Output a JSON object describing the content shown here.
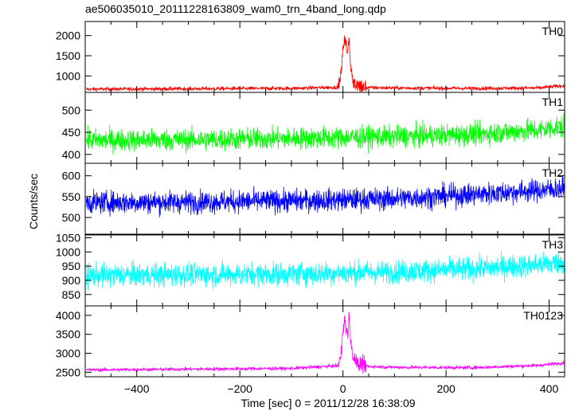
{
  "plot_title": "ae506035010_20111228163809_wam0_trn_4band_long.qdp",
  "xlabel": "Time [sec] 0 = 2011/12/28 16:38:09",
  "ylabel": "Counts/sec",
  "chart_data": {
    "type": "line",
    "title": "ae506035010_20111228163809_wam0_trn_4band_long.qdp",
    "xlabel": "Time [sec] 0 = 2011/12/28 16:38:09",
    "ylabel": "Counts/sec",
    "xlim": [
      -500,
      430
    ],
    "x_ticks": [
      -400,
      -200,
      0,
      200,
      400
    ],
    "x_tick_labels": [
      "−400",
      "−200",
      "0",
      "200",
      "400"
    ],
    "grid": false,
    "panels": [
      {
        "name": "TH0",
        "color": "#ff0000",
        "ylim": [
          590,
          2350
        ],
        "y_ticks": [
          1000,
          1500,
          2000
        ],
        "y_tick_labels": [
          "1000",
          "1500",
          "2000"
        ],
        "baseline": [
          [
            -500,
            670
          ],
          [
            -300,
            680
          ],
          [
            -100,
            690
          ],
          [
            0,
            720
          ],
          [
            100,
            700
          ],
          [
            250,
            690
          ],
          [
            380,
            700
          ],
          [
            430,
            760
          ]
        ],
        "noise": 45,
        "burst": [
          [
            -10,
            720
          ],
          [
            -5,
            950
          ],
          [
            0,
            1600
          ],
          [
            3,
            2000
          ],
          [
            6,
            1750
          ],
          [
            9,
            1500
          ],
          [
            12,
            1950
          ],
          [
            15,
            1250
          ],
          [
            19,
            900
          ],
          [
            24,
            780
          ],
          [
            32,
            730
          ],
          [
            45,
            710
          ]
        ],
        "burst_noise": 200
      },
      {
        "name": "TH1",
        "color": "#00ff00",
        "ylim": [
          380,
          540
        ],
        "y_ticks": [
          400,
          450,
          500
        ],
        "y_tick_labels": [
          "400",
          "450",
          "500"
        ],
        "baseline": [
          [
            -500,
            432
          ],
          [
            -300,
            433
          ],
          [
            -100,
            436
          ],
          [
            100,
            440
          ],
          [
            250,
            445
          ],
          [
            380,
            455
          ],
          [
            430,
            465
          ]
        ],
        "noise": 24
      },
      {
        "name": "TH2",
        "color": "#0000ff",
        "ylim": [
          460,
          630
        ],
        "y_ticks": [
          500,
          550,
          600
        ],
        "y_tick_labels": [
          "500",
          "550",
          "600"
        ],
        "baseline": [
          [
            -500,
            536
          ],
          [
            -300,
            537
          ],
          [
            -100,
            540
          ],
          [
            100,
            545
          ],
          [
            250,
            555
          ],
          [
            380,
            565
          ],
          [
            430,
            570
          ]
        ],
        "noise": 26
      },
      {
        "name": "TH3",
        "color": "#00ffff",
        "ylim": [
          810,
          1060
        ],
        "y_ticks": [
          850,
          900,
          950,
          1000,
          1050
        ],
        "y_tick_labels": [
          "850",
          "900",
          "950",
          "1000",
          "1050"
        ],
        "baseline": [
          [
            -500,
            918
          ],
          [
            -300,
            920
          ],
          [
            -100,
            922
          ],
          [
            100,
            930
          ],
          [
            250,
            940
          ],
          [
            380,
            955
          ],
          [
            430,
            965
          ]
        ],
        "noise": 40
      },
      {
        "name": "TH0123",
        "color": "#ff00ff",
        "ylim": [
          2380,
          4250
        ],
        "y_ticks": [
          2500,
          3000,
          3500,
          4000
        ],
        "y_tick_labels": [
          "2500",
          "3000",
          "3500",
          "4000"
        ],
        "baseline": [
          [
            -500,
            2560
          ],
          [
            -300,
            2580
          ],
          [
            -100,
            2600
          ],
          [
            0,
            2680
          ],
          [
            100,
            2630
          ],
          [
            250,
            2620
          ],
          [
            380,
            2680
          ],
          [
            430,
            2750
          ]
        ],
        "noise": 45,
        "burst": [
          [
            -10,
            2650
          ],
          [
            -5,
            2900
          ],
          [
            0,
            3500
          ],
          [
            3,
            3900
          ],
          [
            6,
            3700
          ],
          [
            9,
            3500
          ],
          [
            12,
            3950
          ],
          [
            15,
            3300
          ],
          [
            19,
            2950
          ],
          [
            24,
            2800
          ],
          [
            32,
            2720
          ],
          [
            45,
            2680
          ]
        ],
        "burst_noise": 200
      }
    ]
  }
}
